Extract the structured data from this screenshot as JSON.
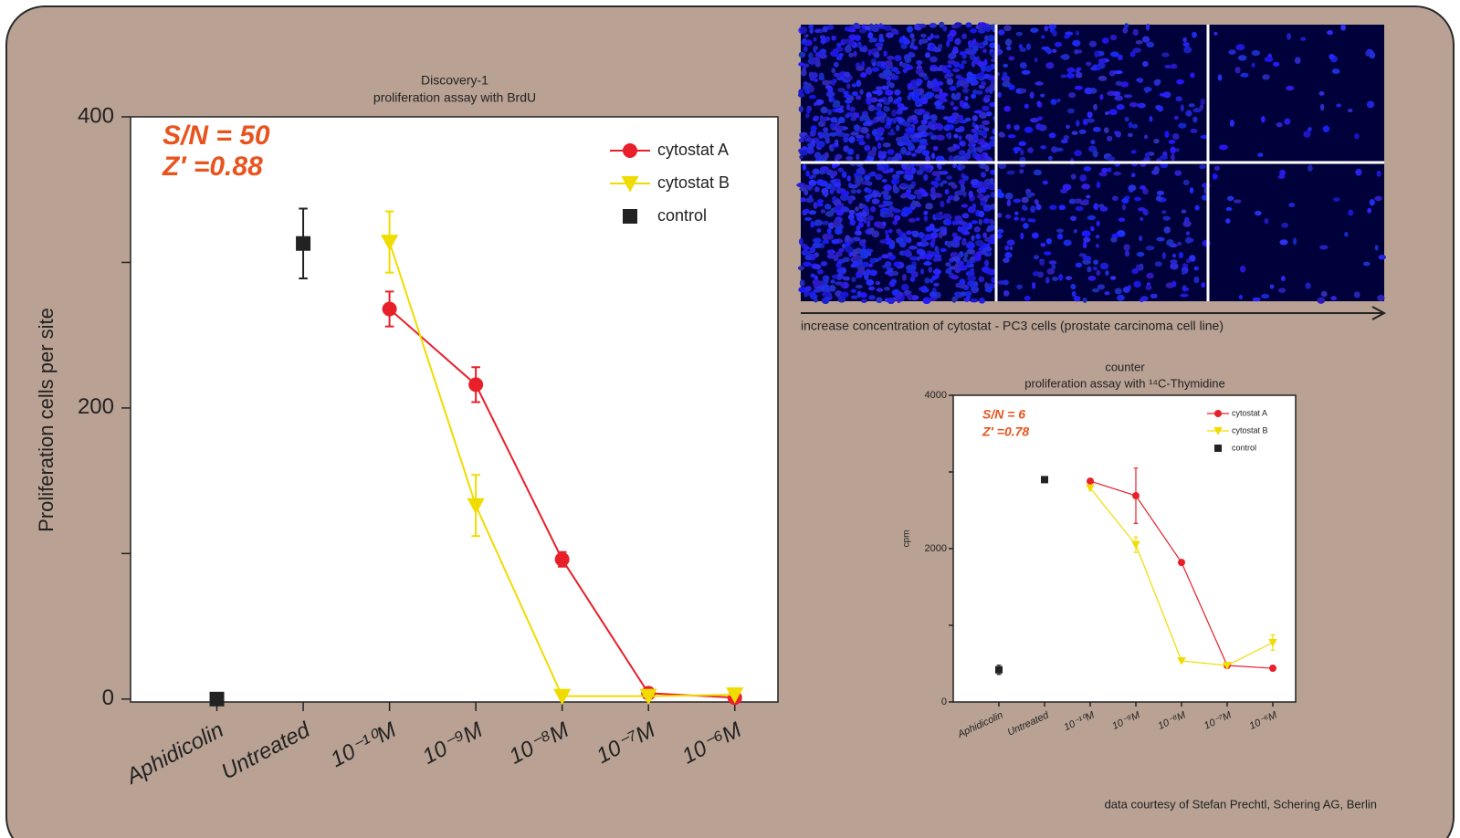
{
  "chart_data": [
    {
      "type": "line",
      "title": "Discovery-1",
      "subtitle": "proliferation assay with BrdU",
      "y_label": "Proliferation cells per site",
      "annotations": [
        "S/N = 50",
        "Z′ =0.88"
      ],
      "categories": [
        "Aphidicolin",
        "Untreated",
        "10⁻¹⁰M",
        "10⁻⁹M",
        "10⁻⁸M",
        "10⁻⁷M",
        "10⁻⁶M"
      ],
      "series": [
        {
          "name": "cytostat A",
          "color": "#e8202a",
          "marker": "circle",
          "line": true,
          "values": [
            null,
            null,
            268,
            216,
            96,
            4,
            1
          ],
          "errors": [
            null,
            null,
            12,
            12,
            5,
            null,
            null
          ]
        },
        {
          "name": "cytostat B",
          "color": "#f0dc00",
          "marker": "triangle-down",
          "line": true,
          "values": [
            null,
            null,
            314,
            133,
            2,
            2,
            3
          ],
          "errors": [
            null,
            null,
            21,
            21,
            null,
            null,
            null
          ]
        },
        {
          "name": "control",
          "color": "#222222",
          "marker": "square",
          "line": false,
          "values": [
            0,
            313,
            null,
            null,
            null,
            null,
            null
          ],
          "errors": [
            null,
            24,
            null,
            null,
            null,
            null,
            null
          ]
        }
      ],
      "ylim": [
        -2,
        400
      ],
      "yticks": [
        0,
        200,
        400
      ],
      "yminor": [
        100,
        300
      ]
    },
    {
      "type": "line",
      "title": "counter",
      "subtitle": "proliferation assay with ¹⁴C-Thymidine",
      "y_label": "cpm",
      "annotations": [
        "S/N = 6",
        "Z′ =0.78"
      ],
      "categories": [
        "Aphidicolin",
        "Untreated",
        "10⁻¹⁰M",
        "10⁻⁹M",
        "10⁻⁸M",
        "10⁻⁷M",
        "10⁻⁶M"
      ],
      "series": [
        {
          "name": "cytostat A",
          "color": "#e8202a",
          "marker": "circle",
          "line": true,
          "values": [
            null,
            null,
            2880,
            2690,
            1820,
            476,
            440
          ],
          "errors": [
            null,
            null,
            null,
            360,
            null,
            null,
            null
          ]
        },
        {
          "name": "cytostat B",
          "color": "#f0dc00",
          "marker": "triangle-down",
          "line": true,
          "values": [
            null,
            null,
            2790,
            2050,
            536,
            476,
            775
          ],
          "errors": [
            null,
            null,
            null,
            100,
            null,
            null,
            100
          ]
        },
        {
          "name": "control",
          "color": "#222222",
          "marker": "square",
          "line": false,
          "values": [
            420,
            2900,
            null,
            null,
            null,
            null,
            null
          ],
          "errors": [
            60,
            null,
            null,
            null,
            null,
            null,
            null
          ]
        }
      ],
      "ylim": [
        0,
        4000
      ],
      "yticks": [
        0,
        2000,
        4000
      ],
      "yminor": [
        1000,
        3000
      ]
    }
  ],
  "caption": "increase concentration of cytostat - PC3 cells (prostate carcinoma cell line)",
  "credit": "data courtesy of Stefan Prechtl, Schering AG, Berlin"
}
